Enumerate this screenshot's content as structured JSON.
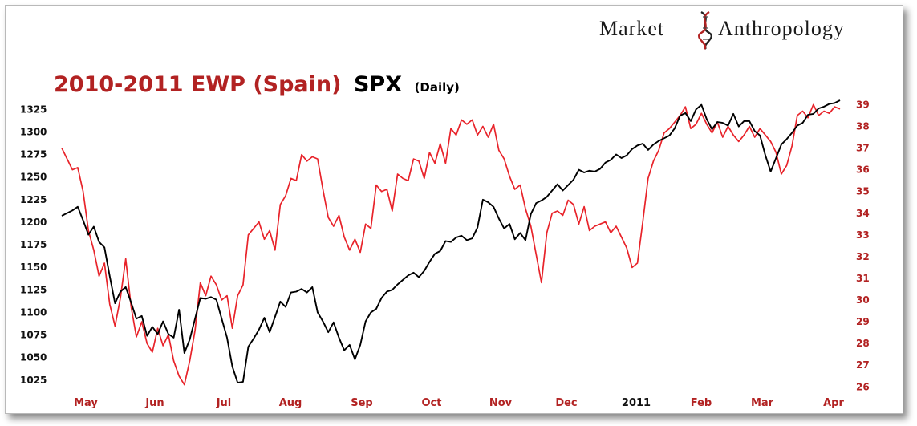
{
  "brand": {
    "first": "Market",
    "second": "Anthropology"
  },
  "title": {
    "main": "2010-2011 EWP (Spain)",
    "secondary": "SPX",
    "note": "(Daily)"
  },
  "chart_data": {
    "type": "line",
    "x_ticks": [
      "May",
      "Jun",
      "Jul",
      "Aug",
      "Sep",
      "Oct",
      "Nov",
      "Dec",
      "2011",
      "Feb",
      "Mar",
      "Apr"
    ],
    "y_left": {
      "ticks": [
        "1325",
        "1300",
        "1275",
        "1250",
        "1225",
        "1200",
        "1175",
        "1150",
        "1125",
        "1100",
        "1075",
        "1050",
        "1025"
      ],
      "ylim": [
        1015,
        1335
      ]
    },
    "y_right": {
      "ticks": [
        "39",
        "38",
        "37",
        "36",
        "35",
        "34",
        "33",
        "32",
        "31",
        "30",
        "29",
        "28",
        "27",
        "26"
      ],
      "ylim": [
        25.9,
        39.2
      ]
    },
    "series": [
      {
        "name": "EWP (Spain)",
        "axis": "right",
        "color": "#e8232a",
        "points": [
          [
            0,
            37
          ],
          [
            2,
            36
          ],
          [
            3,
            36.1
          ],
          [
            4,
            35
          ],
          [
            5,
            33.2
          ],
          [
            6,
            32.3
          ],
          [
            7,
            31.1
          ],
          [
            8,
            31.7
          ],
          [
            9,
            29.8
          ],
          [
            10,
            28.8
          ],
          [
            11,
            30.1
          ],
          [
            12,
            31.9
          ],
          [
            13,
            29.7
          ],
          [
            14,
            28.3
          ],
          [
            15,
            29
          ],
          [
            16,
            28
          ],
          [
            17,
            27.6
          ],
          [
            18,
            28.7
          ],
          [
            19,
            27.9
          ],
          [
            20,
            28.4
          ],
          [
            21,
            27.2
          ],
          [
            22,
            26.5
          ],
          [
            23,
            26.1
          ],
          [
            24,
            27.2
          ],
          [
            25,
            28.6
          ],
          [
            26,
            30.8
          ],
          [
            27,
            30.2
          ],
          [
            28,
            31.1
          ],
          [
            29,
            30.7
          ],
          [
            30,
            30
          ],
          [
            31,
            30.2
          ],
          [
            32,
            28.7
          ],
          [
            33,
            30.2
          ],
          [
            34,
            30.7
          ],
          [
            35,
            33
          ],
          [
            36,
            33.3
          ],
          [
            37,
            33.6
          ],
          [
            38,
            32.8
          ],
          [
            39,
            33.2
          ],
          [
            40,
            32.3
          ],
          [
            41,
            34.4
          ],
          [
            42,
            34.8
          ],
          [
            43,
            35.6
          ],
          [
            44,
            35.5
          ],
          [
            45,
            36.7
          ],
          [
            46,
            36.4
          ],
          [
            47,
            36.6
          ],
          [
            48,
            36.5
          ],
          [
            49,
            35.1
          ],
          [
            50,
            33.8
          ],
          [
            51,
            33.4
          ],
          [
            52,
            33.9
          ],
          [
            53,
            32.9
          ],
          [
            54,
            32.3
          ],
          [
            55,
            32.8
          ],
          [
            56,
            32.2
          ],
          [
            57,
            33.5
          ],
          [
            58,
            33.3
          ],
          [
            59,
            35.3
          ],
          [
            60,
            35
          ],
          [
            61,
            35.1
          ],
          [
            62,
            34.1
          ],
          [
            63,
            35.8
          ],
          [
            64,
            35.6
          ],
          [
            65,
            35.5
          ],
          [
            66,
            36.5
          ],
          [
            67,
            36.4
          ],
          [
            68,
            35.6
          ],
          [
            69,
            36.8
          ],
          [
            70,
            36.3
          ],
          [
            71,
            37.2
          ],
          [
            72,
            36.3
          ],
          [
            73,
            37.9
          ],
          [
            74,
            37.6
          ],
          [
            75,
            38.3
          ],
          [
            76,
            38.1
          ],
          [
            77,
            38.3
          ],
          [
            78,
            37.6
          ],
          [
            79,
            38
          ],
          [
            80,
            37.5
          ],
          [
            81,
            38.1
          ],
          [
            82,
            36.9
          ],
          [
            83,
            36.5
          ],
          [
            84,
            35.7
          ],
          [
            85,
            35.1
          ],
          [
            86,
            35.3
          ],
          [
            87,
            34.2
          ],
          [
            88,
            33.4
          ],
          [
            89,
            32.1
          ],
          [
            90,
            30.8
          ],
          [
            91,
            33.1
          ],
          [
            92,
            34
          ],
          [
            93,
            34.1
          ],
          [
            94,
            33.9
          ],
          [
            95,
            34.6
          ],
          [
            96,
            34.4
          ],
          [
            97,
            33.5
          ],
          [
            98,
            34.3
          ],
          [
            99,
            33.2
          ],
          [
            100,
            33.4
          ],
          [
            101,
            33.5
          ],
          [
            102,
            33.6
          ],
          [
            103,
            33.1
          ],
          [
            104,
            33.4
          ],
          [
            105,
            32.9
          ],
          [
            106,
            32.4
          ],
          [
            107,
            31.5
          ],
          [
            108,
            31.7
          ],
          [
            109,
            33.6
          ],
          [
            110,
            35.6
          ],
          [
            111,
            36.4
          ],
          [
            112,
            36.9
          ],
          [
            113,
            37.7
          ],
          [
            114,
            37.9
          ],
          [
            115,
            38.2
          ],
          [
            116,
            38.5
          ],
          [
            117,
            38.9
          ],
          [
            118,
            37.9
          ],
          [
            119,
            38.1
          ],
          [
            120,
            38.6
          ],
          [
            121,
            38.1
          ],
          [
            122,
            37.7
          ],
          [
            123,
            38.2
          ],
          [
            124,
            37.5
          ],
          [
            125,
            38
          ],
          [
            126,
            37.6
          ],
          [
            127,
            37.3
          ],
          [
            128,
            37.6
          ],
          [
            129,
            38
          ],
          [
            130,
            37.5
          ],
          [
            131,
            37.9
          ],
          [
            132,
            37.6
          ],
          [
            133,
            37.3
          ],
          [
            134,
            36.8
          ],
          [
            135,
            35.8
          ],
          [
            136,
            36.2
          ],
          [
            137,
            37.1
          ],
          [
            138,
            38.5
          ],
          [
            139,
            38.7
          ],
          [
            140,
            38.4
          ],
          [
            141,
            39
          ],
          [
            142,
            38.5
          ],
          [
            143,
            38.7
          ],
          [
            144,
            38.6
          ],
          [
            145,
            38.9
          ],
          [
            146,
            38.8
          ]
        ]
      },
      {
        "name": "SPX",
        "axis": "left",
        "color": "#000000",
        "points": [
          [
            0,
            1207
          ],
          [
            2,
            1213
          ],
          [
            3,
            1217
          ],
          [
            4,
            1202
          ],
          [
            5,
            1186
          ],
          [
            6,
            1195
          ],
          [
            7,
            1178
          ],
          [
            8,
            1172
          ],
          [
            9,
            1140
          ],
          [
            10,
            1110
          ],
          [
            11,
            1123
          ],
          [
            12,
            1128
          ],
          [
            13,
            1111
          ],
          [
            14,
            1093
          ],
          [
            15,
            1096
          ],
          [
            16,
            1074
          ],
          [
            17,
            1084
          ],
          [
            18,
            1076
          ],
          [
            19,
            1090
          ],
          [
            20,
            1076
          ],
          [
            21,
            1072
          ],
          [
            22,
            1103
          ],
          [
            23,
            1055
          ],
          [
            24,
            1070
          ],
          [
            25,
            1093
          ],
          [
            26,
            1116
          ],
          [
            27,
            1115
          ],
          [
            28,
            1117
          ],
          [
            29,
            1114
          ],
          [
            30,
            1093
          ],
          [
            31,
            1072
          ],
          [
            32,
            1040
          ],
          [
            33,
            1022
          ],
          [
            34,
            1023
          ],
          [
            35,
            1062
          ],
          [
            36,
            1071
          ],
          [
            37,
            1081
          ],
          [
            38,
            1094
          ],
          [
            39,
            1078
          ],
          [
            40,
            1095
          ],
          [
            41,
            1112
          ],
          [
            42,
            1106
          ],
          [
            43,
            1122
          ],
          [
            44,
            1123
          ],
          [
            45,
            1126
          ],
          [
            46,
            1122
          ],
          [
            47,
            1128
          ],
          [
            48,
            1100
          ],
          [
            49,
            1090
          ],
          [
            50,
            1078
          ],
          [
            51,
            1089
          ],
          [
            52,
            1072
          ],
          [
            53,
            1058
          ],
          [
            54,
            1064
          ],
          [
            55,
            1048
          ],
          [
            56,
            1064
          ],
          [
            57,
            1090
          ],
          [
            58,
            1100
          ],
          [
            59,
            1104
          ],
          [
            60,
            1116
          ],
          [
            61,
            1123
          ],
          [
            62,
            1125
          ],
          [
            63,
            1131
          ],
          [
            64,
            1136
          ],
          [
            65,
            1141
          ],
          [
            66,
            1144
          ],
          [
            67,
            1139
          ],
          [
            68,
            1146
          ],
          [
            69,
            1156
          ],
          [
            70,
            1165
          ],
          [
            71,
            1168
          ],
          [
            72,
            1179
          ],
          [
            73,
            1178
          ],
          [
            74,
            1183
          ],
          [
            75,
            1185
          ],
          [
            76,
            1180
          ],
          [
            77,
            1182
          ],
          [
            78,
            1194
          ],
          [
            79,
            1225
          ],
          [
            80,
            1222
          ],
          [
            81,
            1217
          ],
          [
            82,
            1204
          ],
          [
            83,
            1193
          ],
          [
            84,
            1198
          ],
          [
            85,
            1181
          ],
          [
            86,
            1188
          ],
          [
            87,
            1180
          ],
          [
            88,
            1209
          ],
          [
            89,
            1221
          ],
          [
            90,
            1224
          ],
          [
            91,
            1228
          ],
          [
            92,
            1235
          ],
          [
            93,
            1242
          ],
          [
            94,
            1235
          ],
          [
            95,
            1241
          ],
          [
            96,
            1247
          ],
          [
            97,
            1258
          ],
          [
            98,
            1255
          ],
          [
            99,
            1257
          ],
          [
            100,
            1256
          ],
          [
            101,
            1259
          ],
          [
            102,
            1266
          ],
          [
            103,
            1269
          ],
          [
            104,
            1275
          ],
          [
            105,
            1271
          ],
          [
            106,
            1274
          ],
          [
            107,
            1281
          ],
          [
            108,
            1285
          ],
          [
            109,
            1287
          ],
          [
            110,
            1280
          ],
          [
            111,
            1286
          ],
          [
            112,
            1290
          ],
          [
            113,
            1293
          ],
          [
            114,
            1296
          ],
          [
            115,
            1304
          ],
          [
            116,
            1318
          ],
          [
            117,
            1321
          ],
          [
            118,
            1312
          ],
          [
            119,
            1325
          ],
          [
            120,
            1330
          ],
          [
            121,
            1314
          ],
          [
            122,
            1303
          ],
          [
            123,
            1311
          ],
          [
            124,
            1310
          ],
          [
            125,
            1307
          ],
          [
            126,
            1320
          ],
          [
            127,
            1306
          ],
          [
            128,
            1312
          ],
          [
            129,
            1312
          ],
          [
            130,
            1301
          ],
          [
            131,
            1296
          ],
          [
            132,
            1274
          ],
          [
            133,
            1256
          ],
          [
            134,
            1271
          ],
          [
            135,
            1286
          ],
          [
            136,
            1292
          ],
          [
            137,
            1299
          ],
          [
            138,
            1307
          ],
          [
            139,
            1310
          ],
          [
            140,
            1319
          ],
          [
            141,
            1320
          ],
          [
            142,
            1326
          ],
          [
            143,
            1328
          ],
          [
            144,
            1331
          ],
          [
            145,
            1332
          ],
          [
            146,
            1335
          ]
        ]
      }
    ]
  },
  "colors": {
    "red": "#e8232a",
    "title_red": "#b22222",
    "black": "#000000"
  }
}
